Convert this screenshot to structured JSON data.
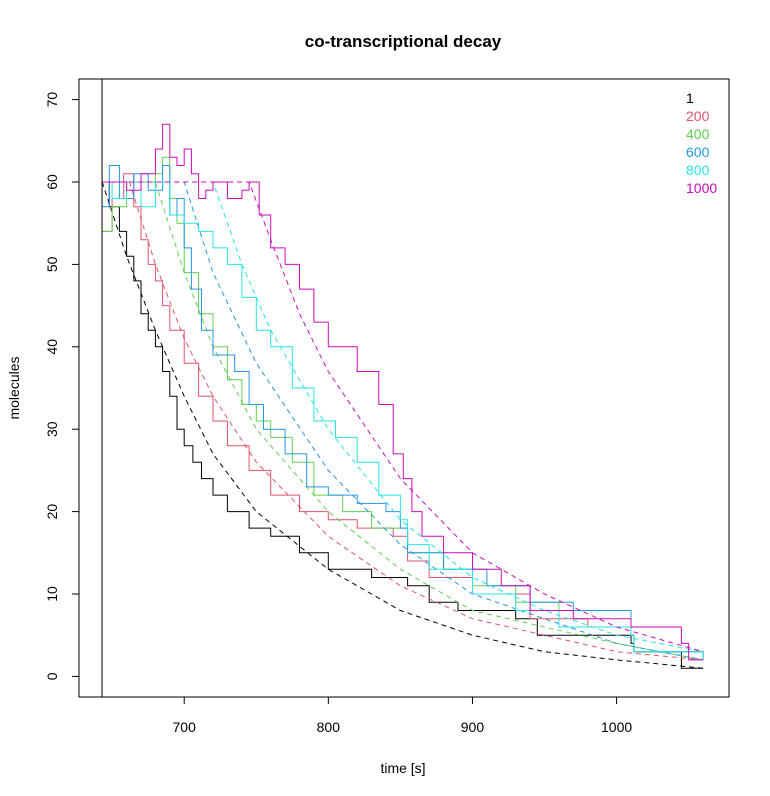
{
  "chart_data": {
    "type": "line",
    "title": "co-transcriptional decay",
    "xlabel": "time [s]",
    "ylabel": "molecules",
    "xlim": [
      627,
      1078
    ],
    "ylim": [
      -2.5,
      72.5
    ],
    "xticks": [
      700,
      800,
      900,
      1000
    ],
    "yticks": [
      0,
      10,
      20,
      30,
      40,
      50,
      60,
      70
    ],
    "vline_x": 643,
    "legend": {
      "position": "top-right",
      "entries": [
        "1",
        "200",
        "400",
        "600",
        "800",
        "1000"
      ]
    },
    "series": [
      {
        "name": "1",
        "color": "#000000",
        "simulated": [
          [
            643,
            60
          ],
          [
            648,
            57
          ],
          [
            655,
            54
          ],
          [
            660,
            51
          ],
          [
            665,
            48
          ],
          [
            670,
            44
          ],
          [
            675,
            42
          ],
          [
            680,
            40
          ],
          [
            685,
            37
          ],
          [
            690,
            34
          ],
          [
            695,
            30
          ],
          [
            700,
            28
          ],
          [
            706,
            26
          ],
          [
            712,
            24
          ],
          [
            720,
            22
          ],
          [
            730,
            20
          ],
          [
            745,
            18
          ],
          [
            760,
            17
          ],
          [
            780,
            15
          ],
          [
            800,
            13
          ],
          [
            830,
            12
          ],
          [
            855,
            11
          ],
          [
            870,
            9
          ],
          [
            890,
            8
          ],
          [
            930,
            7
          ],
          [
            945,
            5
          ],
          [
            1010,
            4
          ],
          [
            1012,
            3
          ],
          [
            1045,
            1
          ],
          [
            1060,
            1
          ]
        ],
        "fitted": [
          [
            643,
            60
          ],
          [
            660,
            51
          ],
          [
            680,
            42
          ],
          [
            700,
            34
          ],
          [
            720,
            27
          ],
          [
            750,
            20
          ],
          [
            800,
            13
          ],
          [
            850,
            8
          ],
          [
            900,
            5
          ],
          [
            950,
            3
          ],
          [
            1000,
            2
          ],
          [
            1060,
            1
          ]
        ]
      },
      {
        "name": "200",
        "color": "#df536b",
        "simulated": [
          [
            643,
            54
          ],
          [
            650,
            58
          ],
          [
            658,
            61
          ],
          [
            665,
            57
          ],
          [
            670,
            53
          ],
          [
            675,
            50
          ],
          [
            680,
            48
          ],
          [
            685,
            45
          ],
          [
            690,
            42
          ],
          [
            700,
            38
          ],
          [
            710,
            34
          ],
          [
            720,
            31
          ],
          [
            730,
            28
          ],
          [
            745,
            25
          ],
          [
            760,
            22
          ],
          [
            780,
            20
          ],
          [
            800,
            19
          ],
          [
            820,
            18
          ],
          [
            845,
            17
          ],
          [
            855,
            14
          ],
          [
            870,
            12
          ],
          [
            900,
            10
          ],
          [
            940,
            7
          ],
          [
            980,
            6
          ],
          [
            1010,
            5
          ],
          [
            1012,
            3
          ],
          [
            1060,
            2
          ]
        ],
        "fitted": [
          [
            643,
            60
          ],
          [
            662,
            60
          ],
          [
            680,
            50
          ],
          [
            700,
            41
          ],
          [
            720,
            34
          ],
          [
            750,
            26
          ],
          [
            800,
            17
          ],
          [
            850,
            11
          ],
          [
            900,
            7
          ],
          [
            950,
            5
          ],
          [
            1000,
            3
          ],
          [
            1060,
            2
          ]
        ]
      },
      {
        "name": "400",
        "color": "#61d04f",
        "simulated": [
          [
            643,
            54
          ],
          [
            650,
            57
          ],
          [
            660,
            60
          ],
          [
            670,
            60
          ],
          [
            680,
            61
          ],
          [
            685,
            63
          ],
          [
            690,
            58
          ],
          [
            695,
            55
          ],
          [
            700,
            49
          ],
          [
            710,
            44
          ],
          [
            720,
            40
          ],
          [
            730,
            36
          ],
          [
            740,
            33
          ],
          [
            750,
            31
          ],
          [
            760,
            29
          ],
          [
            775,
            26
          ],
          [
            790,
            22
          ],
          [
            810,
            20
          ],
          [
            830,
            18
          ],
          [
            845,
            18
          ],
          [
            855,
            15
          ],
          [
            880,
            13
          ],
          [
            900,
            11
          ],
          [
            930,
            9
          ],
          [
            960,
            8
          ],
          [
            1010,
            5
          ],
          [
            1012,
            3
          ],
          [
            1060,
            2
          ]
        ],
        "fitted": [
          [
            643,
            60
          ],
          [
            680,
            60
          ],
          [
            700,
            49
          ],
          [
            720,
            40
          ],
          [
            750,
            30
          ],
          [
            800,
            20
          ],
          [
            850,
            13
          ],
          [
            900,
            8
          ],
          [
            950,
            6
          ],
          [
            1000,
            4
          ],
          [
            1060,
            2
          ]
        ]
      },
      {
        "name": "600",
        "color": "#2297e6",
        "simulated": [
          [
            643,
            57
          ],
          [
            648,
            62
          ],
          [
            655,
            58
          ],
          [
            665,
            61
          ],
          [
            675,
            59
          ],
          [
            685,
            62
          ],
          [
            690,
            56
          ],
          [
            695,
            58
          ],
          [
            700,
            52
          ],
          [
            705,
            47
          ],
          [
            712,
            42
          ],
          [
            720,
            39
          ],
          [
            735,
            37
          ],
          [
            745,
            33
          ],
          [
            755,
            30
          ],
          [
            770,
            27
          ],
          [
            785,
            23
          ],
          [
            800,
            22
          ],
          [
            820,
            21
          ],
          [
            840,
            20
          ],
          [
            850,
            18
          ],
          [
            855,
            15
          ],
          [
            880,
            13
          ],
          [
            910,
            11
          ],
          [
            940,
            9
          ],
          [
            970,
            8
          ],
          [
            1010,
            5
          ],
          [
            1012,
            3
          ],
          [
            1060,
            2
          ]
        ],
        "fitted": [
          [
            643,
            60
          ],
          [
            700,
            60
          ],
          [
            720,
            49
          ],
          [
            750,
            38
          ],
          [
            800,
            25
          ],
          [
            850,
            16
          ],
          [
            900,
            10
          ],
          [
            950,
            7
          ],
          [
            1000,
            4
          ],
          [
            1060,
            2
          ]
        ]
      },
      {
        "name": "800",
        "color": "#28e2e5",
        "simulated": [
          [
            643,
            60
          ],
          [
            650,
            58
          ],
          [
            660,
            60
          ],
          [
            670,
            57
          ],
          [
            680,
            60
          ],
          [
            690,
            56
          ],
          [
            700,
            55
          ],
          [
            710,
            54
          ],
          [
            720,
            52
          ],
          [
            730,
            50
          ],
          [
            740,
            46
          ],
          [
            750,
            42
          ],
          [
            760,
            40
          ],
          [
            775,
            35
          ],
          [
            790,
            31
          ],
          [
            805,
            29
          ],
          [
            820,
            26
          ],
          [
            835,
            22
          ],
          [
            850,
            19
          ],
          [
            855,
            16
          ],
          [
            870,
            13
          ],
          [
            900,
            10
          ],
          [
            930,
            8
          ],
          [
            960,
            6
          ],
          [
            1010,
            5
          ],
          [
            1012,
            3
          ],
          [
            1060,
            2
          ]
        ],
        "fitted": [
          [
            643,
            60
          ],
          [
            720,
            60
          ],
          [
            740,
            50
          ],
          [
            760,
            42
          ],
          [
            800,
            30
          ],
          [
            850,
            19
          ],
          [
            900,
            12
          ],
          [
            950,
            8
          ],
          [
            1000,
            5
          ],
          [
            1060,
            3
          ]
        ]
      },
      {
        "name": "1000",
        "color": "#cd0bbc",
        "simulated": [
          [
            643,
            60
          ],
          [
            660,
            59
          ],
          [
            670,
            61
          ],
          [
            680,
            64
          ],
          [
            685,
            67
          ],
          [
            690,
            63
          ],
          [
            695,
            62
          ],
          [
            700,
            64
          ],
          [
            705,
            61
          ],
          [
            710,
            58
          ],
          [
            715,
            59
          ],
          [
            720,
            60
          ],
          [
            730,
            58
          ],
          [
            740,
            59
          ],
          [
            745,
            60
          ],
          [
            752,
            56
          ],
          [
            760,
            52
          ],
          [
            770,
            50
          ],
          [
            780,
            47
          ],
          [
            790,
            43
          ],
          [
            800,
            40
          ],
          [
            820,
            37
          ],
          [
            835,
            33
          ],
          [
            845,
            27
          ],
          [
            852,
            24
          ],
          [
            858,
            20
          ],
          [
            865,
            17
          ],
          [
            880,
            15
          ],
          [
            900,
            13
          ],
          [
            920,
            11
          ],
          [
            940,
            8
          ],
          [
            970,
            7
          ],
          [
            1010,
            6
          ],
          [
            1045,
            4
          ],
          [
            1050,
            2
          ],
          [
            1060,
            2
          ]
        ],
        "fitted": [
          [
            643,
            60
          ],
          [
            745,
            60
          ],
          [
            760,
            53
          ],
          [
            780,
            44
          ],
          [
            800,
            37
          ],
          [
            850,
            24
          ],
          [
            900,
            15
          ],
          [
            950,
            10
          ],
          [
            1000,
            6
          ],
          [
            1060,
            3
          ]
        ]
      }
    ]
  }
}
